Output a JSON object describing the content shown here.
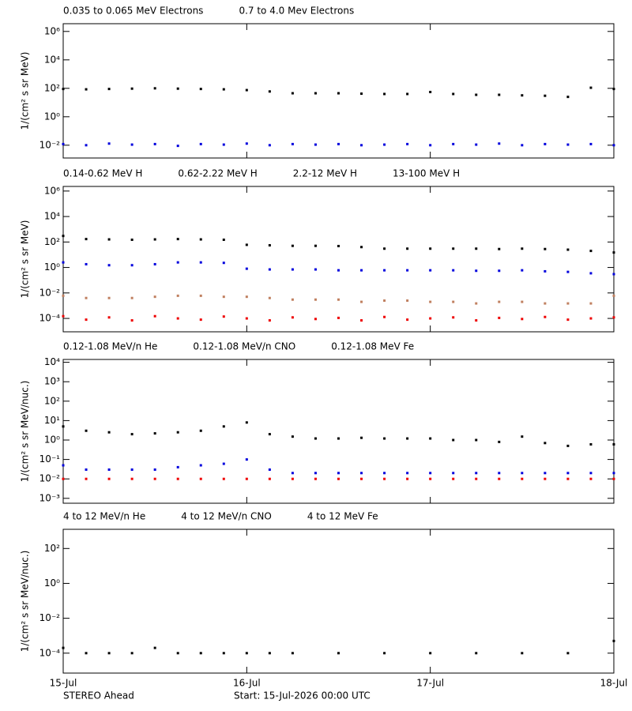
{
  "chart_data": [
    {
      "type": "scatter",
      "log": true,
      "ylabel": "1/(cm² s sr MeV)",
      "xlim": [
        0,
        3
      ],
      "ylim": [
        0.00126,
        3500000
      ],
      "yticks": [
        {
          "value": 0.01,
          "label": "10⁻²"
        },
        {
          "value": 1,
          "label": "10⁰"
        },
        {
          "value": 100,
          "label": "10²"
        },
        {
          "value": 10000,
          "label": "10⁴"
        },
        {
          "value": 1000000,
          "label": "10⁶"
        }
      ],
      "x": [
        0,
        0.125,
        0.25,
        0.375,
        0.5,
        0.625,
        0.75,
        0.875,
        1,
        1.125,
        1.25,
        1.375,
        1.5,
        1.625,
        1.75,
        1.875,
        2,
        2.125,
        2.25,
        2.375,
        2.5,
        2.625,
        2.75,
        2.875,
        3
      ],
      "series": [
        {
          "name": "0.035 to 0.065 MeV Electrons",
          "color": "#000000",
          "values": [
            90,
            85,
            90,
            95,
            100,
            95,
            90,
            85,
            75,
            60,
            45,
            45,
            45,
            42,
            40,
            40,
            55,
            40,
            35,
            35,
            32,
            30,
            25,
            110,
            90
          ]
        },
        {
          "name": "0.7 to 4.0 Mev Electrons",
          "color": "#0000dd",
          "values": [
            0.012,
            0.01,
            0.013,
            0.011,
            0.012,
            0.009,
            0.012,
            0.011,
            0.013,
            0.01,
            0.012,
            0.011,
            0.012,
            0.01,
            0.011,
            0.012,
            0.01,
            0.012,
            0.011,
            0.013,
            0.01,
            0.012,
            0.011,
            0.012,
            0.01
          ]
        }
      ]
    },
    {
      "type": "scatter",
      "log": true,
      "ylabel": "1/(cm² s sr MeV)",
      "xlim": [
        0,
        3
      ],
      "ylim": [
        8.9e-06,
        2300000
      ],
      "yticks": [
        {
          "value": 0.0001,
          "label": "10⁻⁴"
        },
        {
          "value": 0.01,
          "label": "10⁻²"
        },
        {
          "value": 1,
          "label": "10⁰"
        },
        {
          "value": 100,
          "label": "10²"
        },
        {
          "value": 10000,
          "label": "10⁴"
        },
        {
          "value": 1000000,
          "label": "10⁶"
        }
      ],
      "x": [
        0,
        0.125,
        0.25,
        0.375,
        0.5,
        0.625,
        0.75,
        0.875,
        1,
        1.125,
        1.25,
        1.375,
        1.5,
        1.625,
        1.75,
        1.875,
        2,
        2.125,
        2.25,
        2.375,
        2.5,
        2.625,
        2.75,
        2.875,
        3
      ],
      "series": [
        {
          "name": "0.14-0.62 MeV H",
          "color": "#000000",
          "values": [
            300,
            170,
            160,
            150,
            160,
            170,
            160,
            150,
            60,
            55,
            50,
            50,
            48,
            40,
            30,
            30,
            30,
            30,
            30,
            28,
            30,
            28,
            25,
            20,
            15
          ]
        },
        {
          "name": "0.62-2.22 MeV H",
          "color": "#0000dd",
          "values": [
            2.5,
            1.8,
            1.5,
            1.5,
            1.8,
            2.5,
            2.5,
            2.3,
            0.8,
            0.7,
            0.7,
            0.7,
            0.6,
            0.6,
            0.6,
            0.6,
            0.6,
            0.6,
            0.55,
            0.55,
            0.6,
            0.5,
            0.45,
            0.35,
            0.3
          ]
        },
        {
          "name": "2.2-12 MeV H",
          "color": "#c08060",
          "values": [
            0.006,
            0.004,
            0.004,
            0.004,
            0.005,
            0.006,
            0.006,
            0.005,
            0.005,
            0.004,
            0.003,
            0.003,
            0.003,
            0.002,
            0.0025,
            0.0025,
            0.002,
            0.002,
            0.0015,
            0.002,
            0.002,
            0.0015,
            0.0015,
            0.0015,
            0.006
          ]
        },
        {
          "name": "13-100 MeV H",
          "color": "#ee0000",
          "values": [
            0.00015,
            8e-05,
            0.00012,
            7e-05,
            0.00015,
            0.0001,
            8e-05,
            0.00014,
            0.0001,
            7e-05,
            0.00012,
            9e-05,
            0.00011,
            7e-05,
            0.00013,
            8e-05,
            0.0001,
            0.00012,
            7e-05,
            0.00011,
            9e-05,
            0.00013,
            8e-05,
            0.0001,
            0.00012
          ]
        }
      ]
    },
    {
      "type": "scatter",
      "log": true,
      "ylabel": "1/(cm² s sr MeV/nuc.)",
      "xlim": [
        0,
        3
      ],
      "ylim": [
        0.00056,
        14000
      ],
      "yticks": [
        {
          "value": 0.001,
          "label": "10⁻³"
        },
        {
          "value": 0.01,
          "label": "10⁻²"
        },
        {
          "value": 0.1,
          "label": "10⁻¹"
        },
        {
          "value": 1,
          "label": "10⁰"
        },
        {
          "value": 10,
          "label": "10¹"
        },
        {
          "value": 100,
          "label": "10²"
        },
        {
          "value": 1000,
          "label": "10³"
        },
        {
          "value": 10000,
          "label": "10⁴"
        }
      ],
      "x": [
        0,
        0.125,
        0.25,
        0.375,
        0.5,
        0.625,
        0.75,
        0.875,
        1,
        1.125,
        1.25,
        1.375,
        1.5,
        1.625,
        1.75,
        1.875,
        2,
        2.125,
        2.25,
        2.375,
        2.5,
        2.625,
        2.75,
        2.875,
        3
      ],
      "series": [
        {
          "name": "0.12-1.08 MeV/n He",
          "color": "#000000",
          "values": [
            5,
            3,
            2.5,
            2,
            2.2,
            2.5,
            3,
            5,
            8,
            2,
            1.5,
            1.2,
            1.2,
            1.3,
            1.2,
            1.2,
            1.2,
            1,
            1,
            0.8,
            1.5,
            0.7,
            0.5,
            0.6,
            0.6
          ]
        },
        {
          "name": "0.12-1.08 MeV/n CNO",
          "color": "#0000dd",
          "values": [
            0.05,
            0.03,
            0.03,
            0.03,
            0.03,
            0.04,
            0.05,
            0.06,
            0.1,
            0.03,
            0.02,
            0.02,
            0.02,
            0.02,
            0.02,
            0.02,
            0.02,
            0.02,
            0.02,
            0.02,
            0.02,
            0.02,
            0.02,
            0.02,
            0.02
          ]
        },
        {
          "name": "0.12-1.08 MeV Fe",
          "color": "#ee0000",
          "values": [
            0.01,
            0.01,
            0.01,
            0.01,
            0.01,
            0.01,
            0.01,
            0.01,
            0.01,
            0.01,
            0.01,
            0.01,
            0.01,
            0.01,
            0.01,
            0.01,
            0.01,
            0.01,
            0.01,
            0.01,
            0.01,
            0.01,
            0.01,
            0.01,
            0.01
          ]
        }
      ]
    },
    {
      "type": "scatter",
      "log": true,
      "ylabel": "1/(cm² s sr MeV/nuc.)",
      "xlim": [
        0,
        3
      ],
      "ylim": [
        7.2e-06,
        1260
      ],
      "yticks": [
        {
          "value": 0.0001,
          "label": "10⁻⁴"
        },
        {
          "value": 0.01,
          "label": "10⁻²"
        },
        {
          "value": 1,
          "label": "10⁰"
        },
        {
          "value": 100,
          "label": "10²"
        }
      ],
      "xticks": [
        {
          "value": 0,
          "label": "15-Jul"
        },
        {
          "value": 1,
          "label": "16-Jul"
        },
        {
          "value": 2,
          "label": "17-Jul"
        },
        {
          "value": 3,
          "label": "18-Jul"
        }
      ],
      "x": [
        0,
        0.125,
        0.25,
        0.375,
        0.5,
        0.625,
        0.75,
        0.875,
        1,
        1.125,
        1.25,
        1.375,
        1.5,
        1.625,
        1.75,
        1.875,
        2,
        2.125,
        2.25,
        2.375,
        2.5,
        2.625,
        2.75,
        2.875,
        3
      ],
      "series": [
        {
          "name": "4 to 12 MeV/n He",
          "color": "#000000",
          "values": [
            0.0002,
            0.0001,
            0.0001,
            0.0001,
            0.0002,
            0.0001,
            0.0001,
            0.0001,
            0.0001,
            0.0001,
            0.0001,
            null,
            0.0001,
            null,
            0.0001,
            null,
            0.0001,
            null,
            0.0001,
            null,
            0.0001,
            null,
            0.0001,
            null,
            0.0005
          ]
        },
        {
          "name": "4 to 12 MeV/n CNO",
          "color": "#0000dd",
          "values": [
            null,
            null,
            null,
            null,
            null,
            null,
            null,
            null,
            null,
            null,
            null,
            null,
            null,
            null,
            null,
            null,
            null,
            null,
            null,
            null,
            null,
            null,
            null,
            null,
            null
          ]
        },
        {
          "name": "4 to 12 MeV Fe",
          "color": "#ee0000",
          "values": [
            null,
            null,
            null,
            null,
            null,
            null,
            null,
            null,
            null,
            null,
            null,
            null,
            null,
            null,
            null,
            null,
            null,
            null,
            null,
            null,
            null,
            null,
            null,
            null,
            null
          ]
        }
      ]
    }
  ],
  "footer": {
    "left": "STEREO Ahead",
    "right": "Start: 15-Jul-2026 00:00 UTC"
  }
}
